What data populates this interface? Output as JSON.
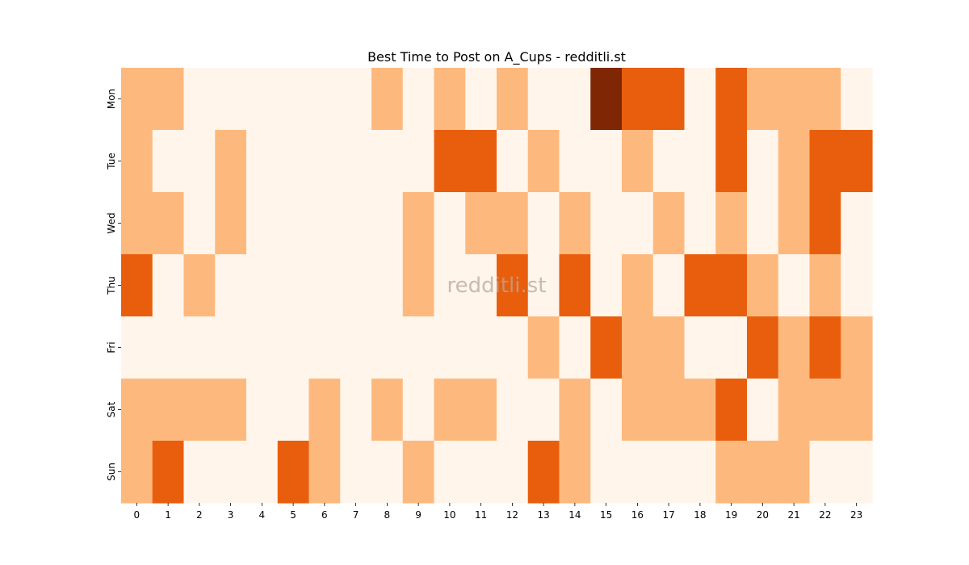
{
  "chart_data": {
    "type": "heatmap",
    "title": "Best Time to Post on A_Cups - redditli.st",
    "watermark": "redditli.st",
    "xlabel": "",
    "ylabel": "",
    "x_categories": [
      "0",
      "1",
      "2",
      "3",
      "4",
      "5",
      "6",
      "7",
      "8",
      "9",
      "10",
      "11",
      "12",
      "13",
      "14",
      "15",
      "16",
      "17",
      "18",
      "19",
      "20",
      "21",
      "22",
      "23"
    ],
    "y_categories": [
      "Mon",
      "Tue",
      "Wed",
      "Thu",
      "Fri",
      "Sat",
      "Sun"
    ],
    "value_range": [
      0,
      3
    ],
    "colors": [
      "#fff5eb",
      "#fdb97d",
      "#e95e0d",
      "#7f2704"
    ],
    "values": [
      [
        1,
        1,
        0,
        0,
        0,
        0,
        0,
        0,
        1,
        0,
        1,
        0,
        1,
        0,
        0,
        3,
        2,
        2,
        0,
        2,
        1,
        1,
        1,
        0
      ],
      [
        1,
        0,
        0,
        1,
        0,
        0,
        0,
        0,
        0,
        0,
        2,
        2,
        0,
        1,
        0,
        0,
        1,
        0,
        0,
        2,
        0,
        1,
        2,
        2
      ],
      [
        1,
        1,
        0,
        1,
        0,
        0,
        0,
        0,
        0,
        1,
        0,
        1,
        1,
        0,
        1,
        0,
        0,
        1,
        0,
        1,
        0,
        1,
        2,
        0
      ],
      [
        2,
        0,
        1,
        0,
        0,
        0,
        0,
        0,
        0,
        1,
        0,
        0,
        2,
        0,
        2,
        0,
        1,
        0,
        2,
        2,
        1,
        0,
        1,
        0
      ],
      [
        0,
        0,
        0,
        0,
        0,
        0,
        0,
        0,
        0,
        0,
        0,
        0,
        0,
        1,
        0,
        2,
        1,
        1,
        0,
        0,
        2,
        1,
        2,
        1
      ],
      [
        1,
        1,
        1,
        1,
        0,
        0,
        1,
        0,
        1,
        0,
        1,
        1,
        0,
        0,
        1,
        0,
        1,
        1,
        1,
        2,
        0,
        1,
        1,
        1
      ],
      [
        1,
        2,
        0,
        0,
        0,
        2,
        1,
        0,
        0,
        1,
        0,
        0,
        0,
        2,
        1,
        0,
        0,
        0,
        0,
        1,
        1,
        1,
        0,
        0
      ]
    ],
    "grid": false,
    "legend": "none"
  }
}
